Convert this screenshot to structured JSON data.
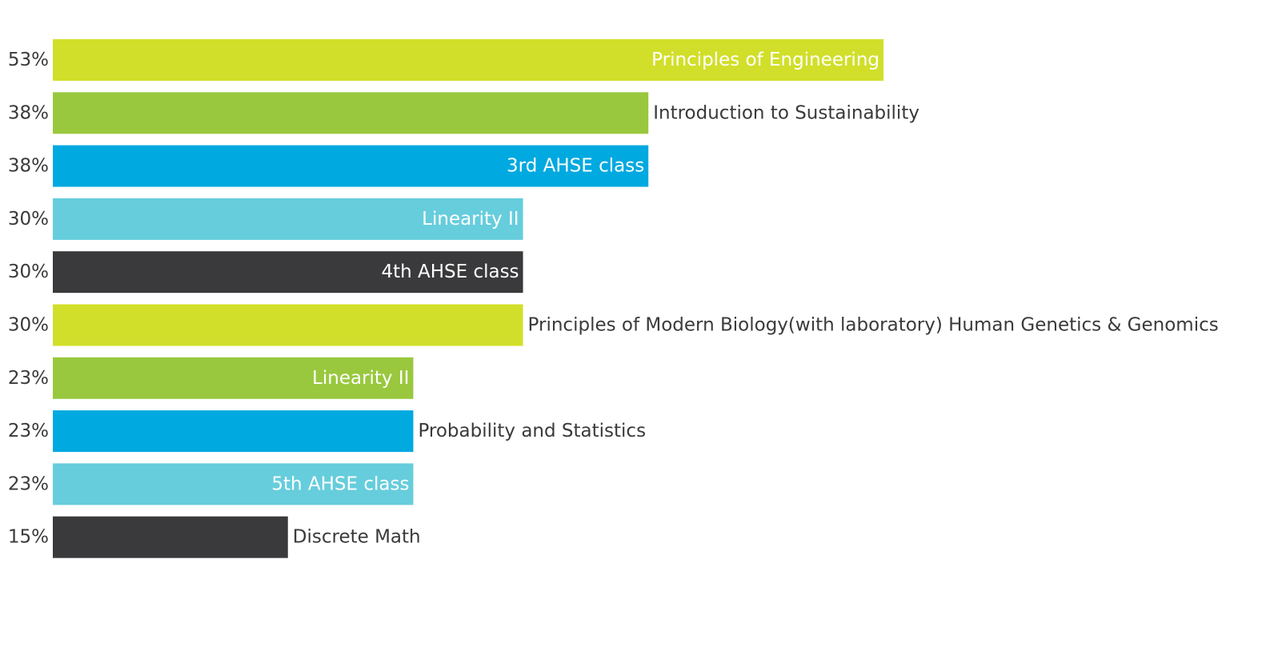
{
  "chart_data": {
    "type": "bar",
    "orientation": "horizontal",
    "grid": false,
    "xlim": [
      0,
      53
    ],
    "bars": [
      {
        "value": 53,
        "pct_label": "53%",
        "label": "Principles of Engineering",
        "color": "#d1df2a",
        "label_position": "inside"
      },
      {
        "value": 38,
        "pct_label": "38%",
        "label": "Introduction to Sustainability",
        "color": "#99c83e",
        "label_position": "outside"
      },
      {
        "value": 38,
        "pct_label": "38%",
        "label": "3rd AHSE class",
        "color": "#00a9e0",
        "label_position": "inside"
      },
      {
        "value": 30,
        "pct_label": "30%",
        "label": "Linearity II",
        "color": "#66cddc",
        "label_position": "inside"
      },
      {
        "value": 30,
        "pct_label": "30%",
        "label": "4th AHSE class",
        "color": "#3a3a3c",
        "label_position": "inside"
      },
      {
        "value": 30,
        "pct_label": "30%",
        "label": "Principles of Modern Biology(with laboratory) Human Genetics & Genomics",
        "color": "#d1df2a",
        "label_position": "outside"
      },
      {
        "value": 23,
        "pct_label": "23%",
        "label": "Linearity II",
        "color": "#99c83e",
        "label_position": "inside"
      },
      {
        "value": 23,
        "pct_label": "23%",
        "label": "Probability and Statistics",
        "color": "#00a9e0",
        "label_position": "outside"
      },
      {
        "value": 23,
        "pct_label": "23%",
        "label": "5th AHSE class",
        "color": "#66cddc",
        "label_position": "inside"
      },
      {
        "value": 15,
        "pct_label": "15%",
        "label": "Discrete Math",
        "color": "#3a3a3c",
        "label_position": "outside"
      }
    ],
    "label_colors": {
      "inside": "#ffffff",
      "outside": "#3a3a3c"
    }
  }
}
